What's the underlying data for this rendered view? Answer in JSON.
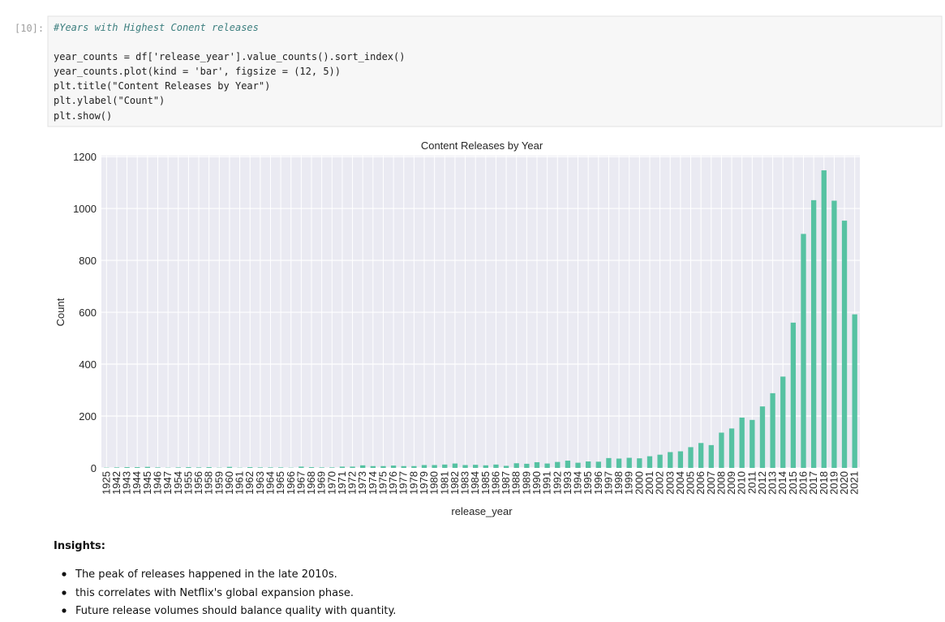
{
  "prompt": "[10]:",
  "code": [
    "#Years with Highest Conent releases",
    "year_counts = df['release_year'].value_counts().sort_index()",
    "year_counts.plot(kind = 'bar', figsize = (12, 5))",
    "plt.title(\"Content Releases by Year\")",
    "plt.ylabel(\"Count\")",
    "plt.show()"
  ],
  "chart_data": {
    "type": "bar",
    "title": "Content Releases by Year",
    "x_label": "release_year",
    "y_label": "Count",
    "categories": [
      "1925",
      "1942",
      "1943",
      "1944",
      "1945",
      "1946",
      "1947",
      "1954",
      "1955",
      "1956",
      "1958",
      "1959",
      "1960",
      "1961",
      "1962",
      "1963",
      "1964",
      "1965",
      "1966",
      "1967",
      "1968",
      "1969",
      "1970",
      "1971",
      "1972",
      "1973",
      "1974",
      "1975",
      "1976",
      "1977",
      "1978",
      "1979",
      "1980",
      "1981",
      "1982",
      "1983",
      "1984",
      "1985",
      "1986",
      "1987",
      "1988",
      "1989",
      "1990",
      "1991",
      "1992",
      "1993",
      "1994",
      "1995",
      "1996",
      "1997",
      "1998",
      "1999",
      "2000",
      "2001",
      "2002",
      "2003",
      "2004",
      "2005",
      "2006",
      "2007",
      "2008",
      "2009",
      "2010",
      "2011",
      "2012",
      "2013",
      "2014",
      "2015",
      "2016",
      "2017",
      "2018",
      "2019",
      "2020",
      "2021"
    ],
    "values": [
      1,
      2,
      3,
      3,
      4,
      2,
      1,
      2,
      3,
      2,
      3,
      1,
      4,
      1,
      3,
      2,
      2,
      2,
      1,
      5,
      3,
      2,
      2,
      5,
      5,
      10,
      7,
      7,
      9,
      7,
      7,
      11,
      11,
      13,
      17,
      11,
      12,
      10,
      13,
      8,
      18,
      16,
      22,
      17,
      23,
      28,
      20,
      25,
      24,
      38,
      36,
      39,
      37,
      45,
      51,
      61,
      64,
      80,
      96,
      88,
      136,
      152,
      194,
      185,
      237,
      288,
      352,
      560,
      902,
      1032,
      1147,
      1030,
      953,
      592
    ],
    "color": "#56c2a2",
    "ylim": [
      0,
      1204.35
    ],
    "yticks": [
      0,
      200,
      400,
      600,
      800,
      1000,
      1200
    ],
    "grid": true
  },
  "insights": {
    "heading": "Insights:",
    "bullets": [
      "The peak of releases happened in the late 2010s.",
      "this correlates with Netflix's global expansion phase.",
      "Future release volumes should balance quality with quantity."
    ]
  }
}
